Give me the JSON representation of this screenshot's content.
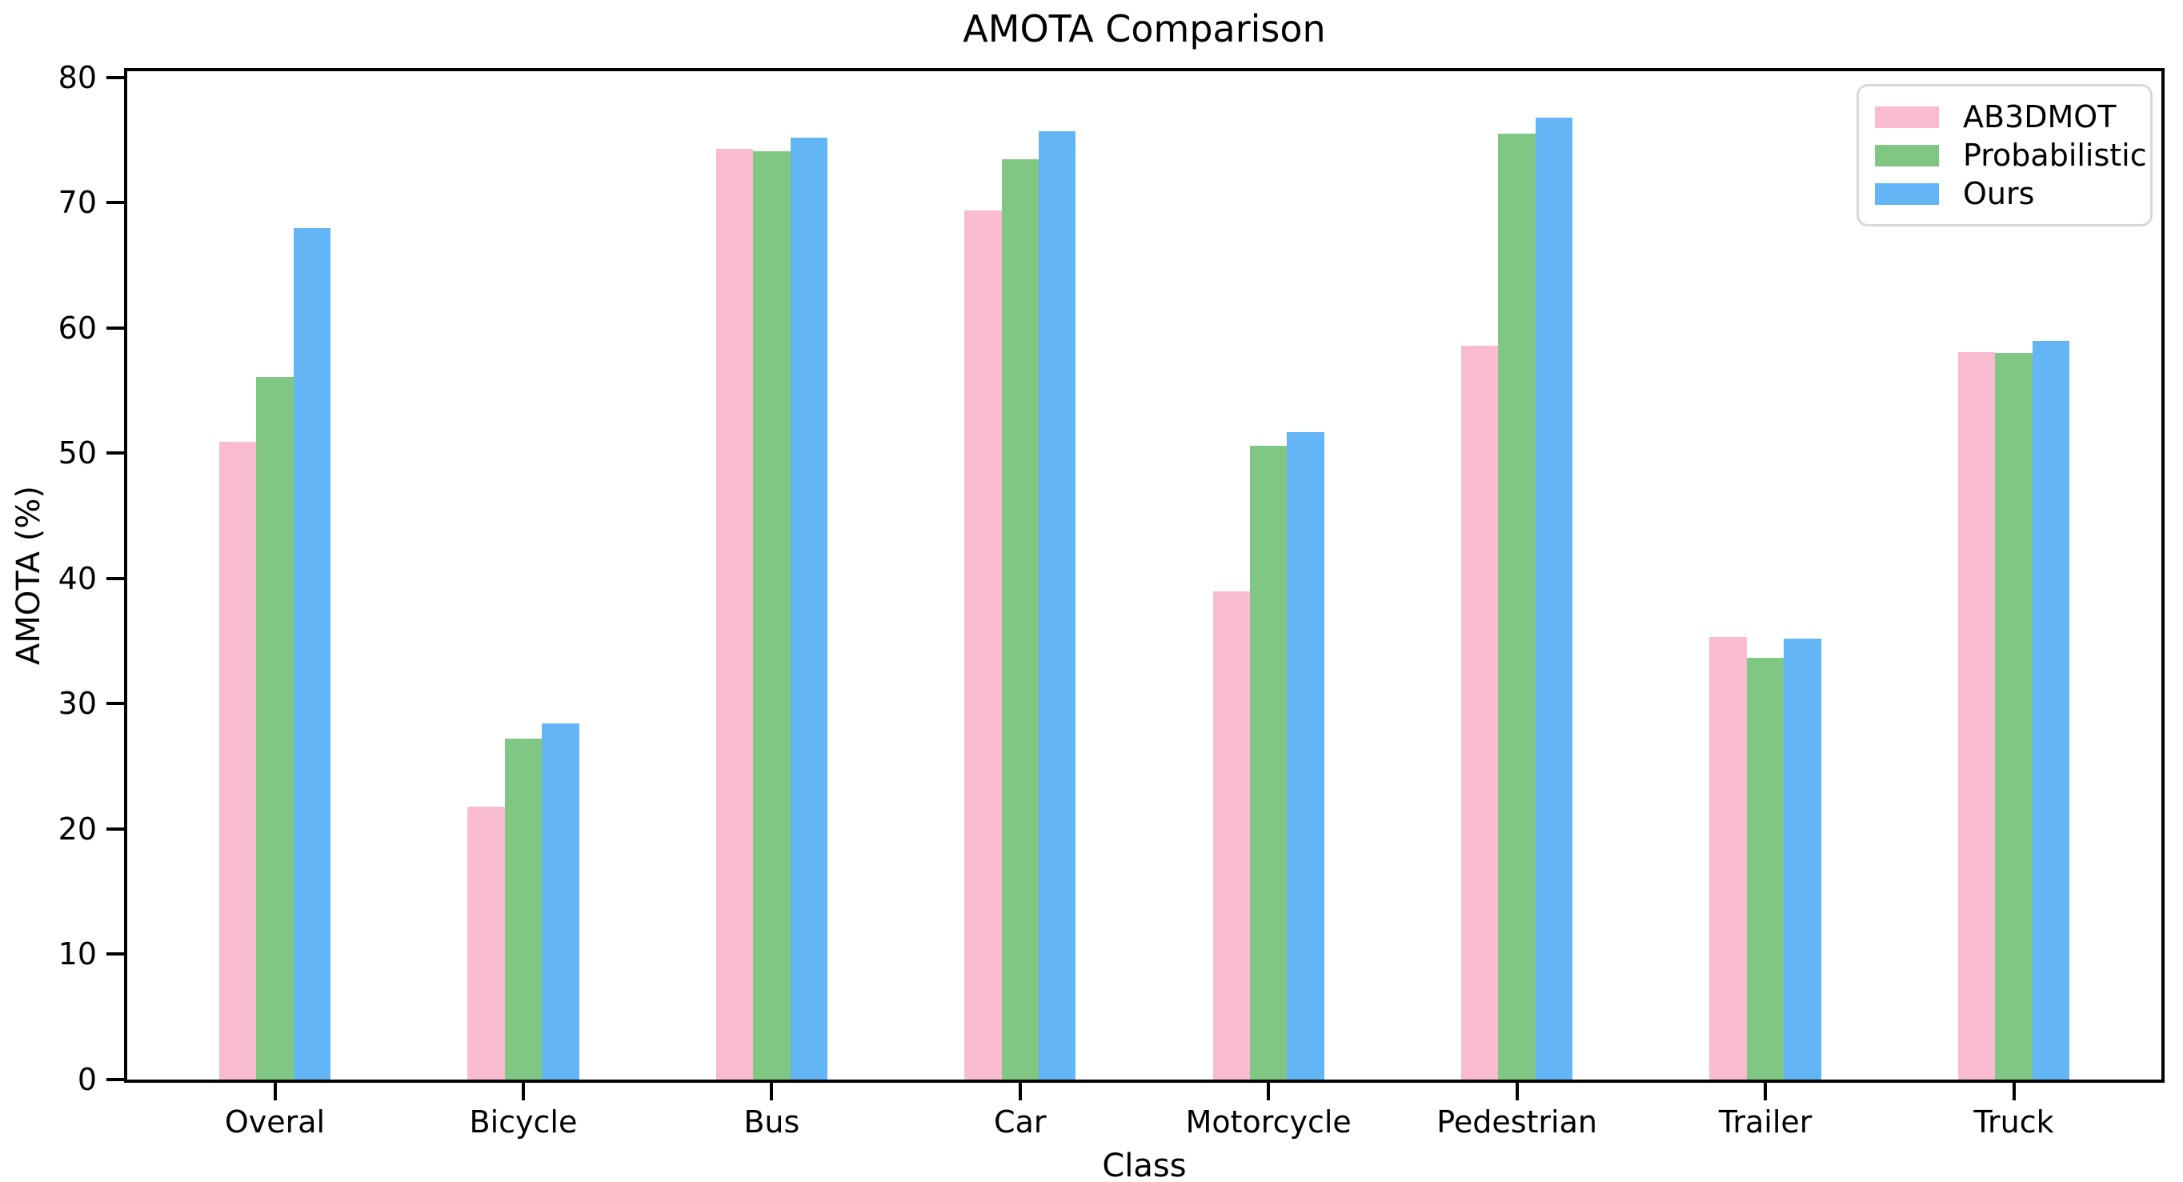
{
  "title": "AMOTA Comparison",
  "chart_data": {
    "type": "bar",
    "title": "AMOTA Comparison",
    "xlabel": "Class",
    "ylabel": "AMOTA (%)",
    "categories": [
      "Overal",
      "Bicycle",
      "Bus",
      "Car",
      "Motorcycle",
      "Pedestrian",
      "Trailer",
      "Truck"
    ],
    "series": [
      {
        "name": "AB3DMOT",
        "color": "#f8bbd0",
        "values": [
          50.9,
          21.8,
          74.3,
          69.4,
          39.0,
          58.6,
          35.3,
          58.1
        ]
      },
      {
        "name": "Probabilistic",
        "color": "#81c784",
        "values": [
          56.1,
          27.2,
          74.1,
          73.5,
          50.6,
          75.5,
          33.7,
          58.0
        ]
      },
      {
        "name": "Ours",
        "color": "#64b5f6",
        "values": [
          68.0,
          28.4,
          75.2,
          75.7,
          51.7,
          76.8,
          35.2,
          59.0
        ]
      }
    ],
    "yticks": [
      0,
      10,
      20,
      30,
      40,
      50,
      60,
      70,
      80
    ],
    "ylim": [
      0,
      80.5
    ],
    "grid": false,
    "legend_position": "upper right",
    "axis_color": "#000000",
    "legend_border_color": "#d9d9d9"
  }
}
